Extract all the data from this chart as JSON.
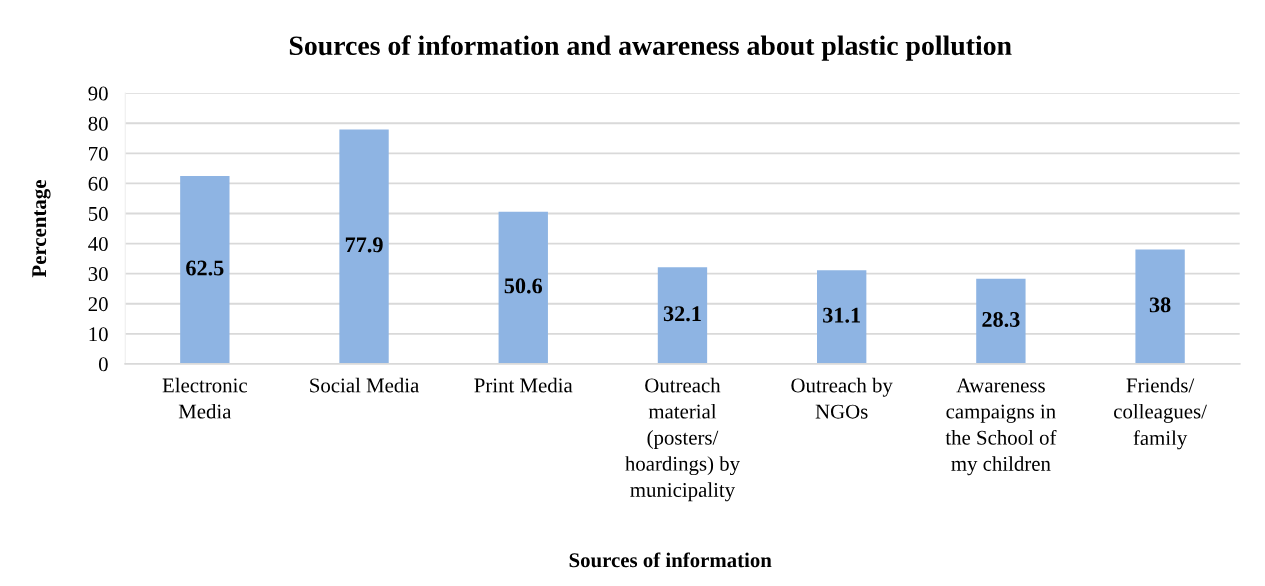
{
  "chart_data": {
    "type": "bar",
    "title": "Sources of information and awareness about plastic pollution",
    "xlabel": "Sources of information",
    "ylabel": "Percentage",
    "categories": [
      "Electronic Media",
      "Social Media",
      "Print Media",
      "Outreach material (posters/ hoardings) by municipality",
      "Outreach by NGOs",
      "Awareness campaigns in the School of my children",
      "Friends/ colleagues/ family"
    ],
    "values": [
      62.5,
      77.9,
      50.6,
      32.1,
      31.1,
      28.3,
      38
    ],
    "color": "#8eb4e3",
    "ylim": [
      0,
      90
    ],
    "yticks": [
      0,
      10,
      20,
      30,
      40,
      50,
      60,
      70,
      80,
      90
    ],
    "grid": "y",
    "data_labels": true,
    "legend": false
  }
}
